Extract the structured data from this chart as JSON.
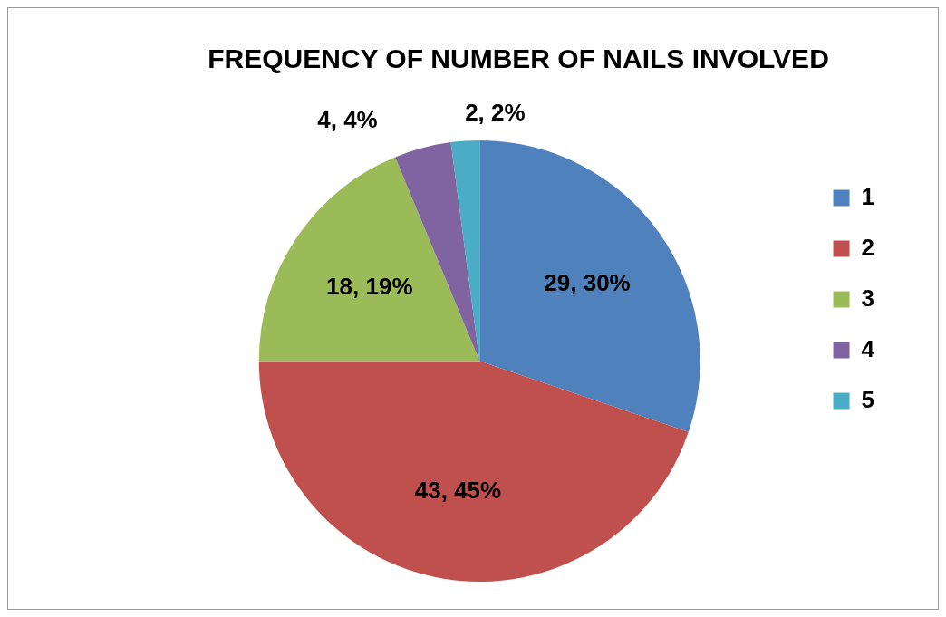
{
  "chart_data": {
    "type": "pie",
    "title": "FREQUENCY OF NUMBER OF NAILS INVOLVED",
    "categories": [
      "1",
      "2",
      "3",
      "4",
      "5"
    ],
    "values": [
      29,
      43,
      18,
      4,
      2
    ],
    "colors": [
      "#4f81bd",
      "#c0504d",
      "#9bbb59",
      "#8064a2",
      "#4bacc6"
    ],
    "value_labels": [
      "29, 30%",
      "43, 45%",
      "18, 19%",
      "4, 4%",
      "2, 2%"
    ],
    "legend": "right"
  }
}
